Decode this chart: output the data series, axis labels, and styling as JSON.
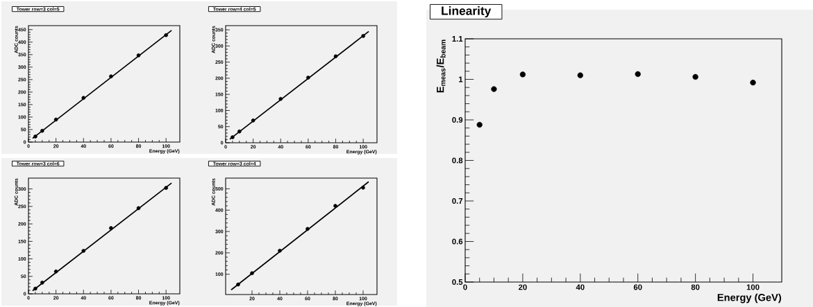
{
  "chart_data": [
    {
      "type": "scatter",
      "title": "Tower row=3 col=5",
      "xlabel": "Energy (GeV)",
      "ylabel": "ADC counts",
      "marker": "circle",
      "x": [
        5,
        10,
        20,
        40,
        60,
        80,
        100
      ],
      "xlim": [
        0,
        110
      ],
      "ylim": [
        0,
        466
      ],
      "xticks": [
        0,
        20,
        40,
        60,
        80,
        100
      ],
      "yticks": [
        0,
        50,
        100,
        150,
        200,
        250,
        300,
        350,
        400,
        450
      ],
      "series": [
        {
          "color": "#000000",
          "values": [
            22,
            45,
            90,
            177,
            263,
            347,
            428
          ]
        },
        {
          "type": "line",
          "marker": "none",
          "color": "#000000",
          "x": [
            3,
            104
          ],
          "values": [
            15,
            447
          ]
        }
      ]
    },
    {
      "type": "scatter",
      "title": "Tower row=4 col=5",
      "xlabel": "Energy (GeV)",
      "ylabel": "ADC counts",
      "marker": "circle",
      "x": [
        5,
        10,
        20,
        40,
        60,
        80,
        100
      ],
      "xlim": [
        0,
        110
      ],
      "ylim": [
        0,
        363
      ],
      "xticks": [
        0,
        20,
        40,
        60,
        80,
        100
      ],
      "yticks": [
        0,
        50,
        100,
        150,
        200,
        250,
        300,
        350
      ],
      "series": [
        {
          "color": "#000000",
          "values": [
            17,
            35,
            69,
            136,
            202,
            268,
            331
          ]
        },
        {
          "type": "line",
          "marker": "none",
          "color": "#000000",
          "x": [
            3,
            104
          ],
          "values": [
            11,
            345
          ]
        }
      ]
    },
    {
      "type": "scatter",
      "title": "Tower row=3 col=6",
      "xlabel": "Energy (GeV)",
      "ylabel": "ADC counts",
      "marker": "circle",
      "x": [
        5,
        10,
        20,
        40,
        60,
        80,
        100
      ],
      "xlim": [
        0,
        110
      ],
      "ylim": [
        0,
        331
      ],
      "xticks": [
        0,
        20,
        40,
        60,
        80,
        100
      ],
      "yticks": [
        0,
        50,
        100,
        150,
        200,
        250,
        300
      ],
      "series": [
        {
          "color": "#000000",
          "values": [
            15,
            32,
            64,
            123,
            188,
            245,
            303
          ]
        },
        {
          "type": "line",
          "marker": "none",
          "color": "#000000",
          "x": [
            3,
            104
          ],
          "values": [
            9,
            317
          ]
        }
      ]
    },
    {
      "type": "scatter",
      "title": "Tower row=3 col=4",
      "xlabel": "Energy (GeV)",
      "ylabel": "ADC counts",
      "marker": "circle",
      "x": [
        10,
        20,
        40,
        60,
        80,
        100
      ],
      "xlim": [
        1,
        110
      ],
      "ylim": [
        5,
        550
      ],
      "xticks": [
        20,
        40,
        60,
        80,
        100
      ],
      "yticks": [
        100,
        200,
        300,
        400,
        500
      ],
      "series": [
        {
          "color": "#000000",
          "values": [
            52,
            105,
            210,
            312,
            420,
            505
          ]
        },
        {
          "type": "line",
          "marker": "none",
          "color": "#000000",
          "x": [
            5,
            104
          ],
          "values": [
            27,
            533
          ]
        }
      ]
    },
    {
      "type": "scatter",
      "title": "Linearity",
      "xlabel": "Energy (GeV)",
      "ylabel": "E$_{meas}$/E$_{beam}$",
      "marker": "circle",
      "x": [
        5,
        10,
        20,
        40,
        60,
        80,
        100
      ],
      "xlim": [
        0,
        110
      ],
      "ylim": [
        0.5,
        1.1
      ],
      "xticks": [
        0,
        20,
        40,
        60,
        80,
        100
      ],
      "yticks": [
        0.5,
        0.6,
        0.7,
        0.8,
        0.9,
        1,
        1.1
      ],
      "series": [
        {
          "color": "#000000",
          "values": [
            0.888,
            0.976,
            1.012,
            1.01,
            1.013,
            1.006,
            0.992
          ]
        }
      ]
    }
  ]
}
